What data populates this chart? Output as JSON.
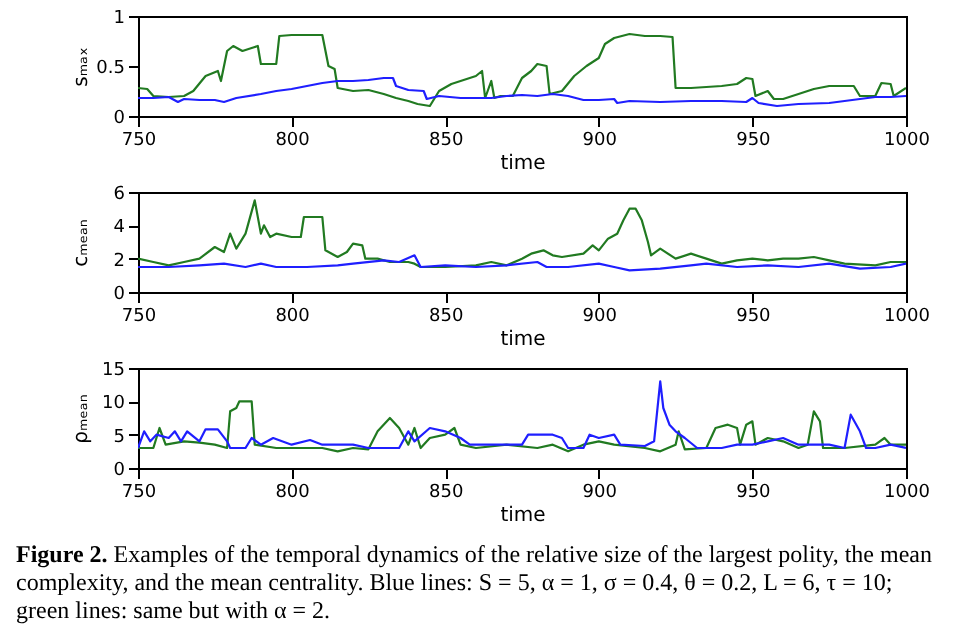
{
  "chart_data": [
    {
      "type": "line",
      "xlabel": "time",
      "ylabel": "sₘₐₓ",
      "xlim": [
        750,
        1000
      ],
      "xticks": [
        750,
        800,
        850,
        900,
        950,
        1000
      ],
      "ylim": [
        0,
        1
      ],
      "yticks": [
        0,
        0.5,
        1
      ],
      "series": [
        {
          "color": "#217a21",
          "x": [
            750,
            753,
            755,
            760,
            765,
            768,
            772,
            776,
            777,
            779,
            781,
            784,
            787,
            789,
            790,
            795,
            796,
            800,
            805,
            810,
            812,
            814,
            815,
            820,
            825,
            830,
            834,
            838,
            841,
            845,
            848,
            852,
            856,
            860,
            862,
            863,
            865,
            866,
            868,
            872,
            875,
            878,
            880,
            883,
            884,
            888,
            892,
            896,
            900,
            902,
            905,
            910,
            915,
            920,
            924,
            925,
            930,
            940,
            945,
            948,
            950,
            951,
            955,
            957,
            960,
            965,
            970,
            975,
            983,
            985,
            990,
            992,
            995,
            996,
            1000
          ],
          "values": [
            0.28,
            0.27,
            0.2,
            0.19,
            0.2,
            0.25,
            0.4,
            0.45,
            0.35,
            0.65,
            0.7,
            0.65,
            0.68,
            0.7,
            0.52,
            0.52,
            0.8,
            0.81,
            0.81,
            0.81,
            0.5,
            0.47,
            0.28,
            0.25,
            0.26,
            0.22,
            0.18,
            0.15,
            0.12,
            0.1,
            0.25,
            0.32,
            0.36,
            0.4,
            0.45,
            0.18,
            0.35,
            0.18,
            0.2,
            0.2,
            0.38,
            0.45,
            0.52,
            0.5,
            0.22,
            0.25,
            0.4,
            0.5,
            0.58,
            0.72,
            0.78,
            0.82,
            0.8,
            0.8,
            0.79,
            0.28,
            0.28,
            0.3,
            0.32,
            0.38,
            0.37,
            0.2,
            0.25,
            0.17,
            0.17,
            0.22,
            0.27,
            0.3,
            0.3,
            0.2,
            0.2,
            0.33,
            0.32,
            0.2,
            0.28
          ]
        },
        {
          "color": "#1f1fff",
          "x": [
            750,
            755,
            760,
            763,
            765,
            770,
            775,
            778,
            782,
            790,
            795,
            800,
            805,
            810,
            815,
            820,
            825,
            830,
            833,
            834,
            838,
            843,
            844,
            848,
            855,
            865,
            870,
            875,
            880,
            885,
            890,
            895,
            900,
            905,
            906,
            910,
            920,
            930,
            940,
            948,
            950,
            952,
            958,
            965,
            975,
            985,
            990,
            995,
            1000
          ],
          "values": [
            0.18,
            0.18,
            0.19,
            0.14,
            0.17,
            0.16,
            0.16,
            0.14,
            0.18,
            0.22,
            0.25,
            0.27,
            0.3,
            0.33,
            0.35,
            0.35,
            0.36,
            0.38,
            0.38,
            0.3,
            0.26,
            0.25,
            0.17,
            0.2,
            0.18,
            0.18,
            0.2,
            0.21,
            0.2,
            0.22,
            0.2,
            0.16,
            0.16,
            0.17,
            0.13,
            0.15,
            0.14,
            0.15,
            0.15,
            0.14,
            0.18,
            0.13,
            0.1,
            0.12,
            0.13,
            0.17,
            0.19,
            0.19,
            0.2
          ]
        }
      ]
    },
    {
      "type": "line",
      "xlabel": "time",
      "ylabel": "cₘₑₐₙ",
      "xlim": [
        750,
        1000
      ],
      "xticks": [
        750,
        800,
        850,
        900,
        950,
        1000
      ],
      "ylim": [
        0,
        6
      ],
      "yticks": [
        0,
        2,
        4,
        6
      ],
      "series": [
        {
          "color": "#217a21",
          "x": [
            750,
            755,
            760,
            765,
            770,
            775,
            778,
            780,
            782,
            785,
            788,
            790,
            791,
            793,
            795,
            800,
            803,
            804,
            810,
            811,
            815,
            818,
            820,
            823,
            824,
            828,
            832,
            838,
            840,
            842,
            850,
            860,
            865,
            870,
            875,
            878,
            882,
            885,
            888,
            895,
            898,
            900,
            903,
            906,
            908,
            910,
            912,
            914,
            916,
            917,
            920,
            925,
            930,
            935,
            940,
            945,
            950,
            955,
            960,
            965,
            970,
            975,
            980,
            990,
            995,
            1000
          ],
          "values": [
            2.0,
            1.8,
            1.6,
            1.8,
            2.0,
            2.7,
            2.4,
            3.5,
            2.6,
            3.5,
            5.5,
            3.5,
            4.0,
            3.3,
            3.5,
            3.3,
            3.3,
            4.5,
            4.5,
            2.5,
            2.1,
            2.4,
            2.9,
            2.8,
            2.0,
            2.0,
            1.8,
            1.8,
            1.7,
            1.5,
            1.5,
            1.6,
            1.8,
            1.6,
            2.0,
            2.3,
            2.5,
            2.2,
            2.1,
            2.3,
            2.8,
            2.5,
            3.2,
            3.5,
            4.3,
            5.0,
            5.0,
            4.3,
            3.0,
            2.2,
            2.6,
            2.0,
            2.3,
            2.0,
            1.7,
            1.9,
            2.0,
            1.9,
            2.0,
            2.0,
            2.1,
            1.9,
            1.7,
            1.6,
            1.8,
            1.8
          ]
        },
        {
          "color": "#1f1fff",
          "x": [
            750,
            760,
            770,
            778,
            785,
            790,
            795,
            805,
            815,
            820,
            830,
            835,
            840,
            842,
            850,
            860,
            870,
            880,
            883,
            890,
            900,
            905,
            910,
            920,
            930,
            935,
            945,
            955,
            965,
            975,
            985,
            995,
            1000
          ],
          "values": [
            1.5,
            1.5,
            1.6,
            1.7,
            1.5,
            1.7,
            1.5,
            1.5,
            1.6,
            1.7,
            1.9,
            1.8,
            2.2,
            1.5,
            1.6,
            1.5,
            1.6,
            1.8,
            1.5,
            1.5,
            1.7,
            1.5,
            1.3,
            1.4,
            1.6,
            1.7,
            1.5,
            1.6,
            1.5,
            1.7,
            1.4,
            1.5,
            1.7
          ]
        }
      ]
    },
    {
      "type": "line",
      "xlabel": "time",
      "ylabel": "ρₘₑₐₙ",
      "xlim": [
        750,
        1000
      ],
      "xticks": [
        750,
        800,
        850,
        900,
        950,
        1000
      ],
      "ylim": [
        0,
        15
      ],
      "yticks": [
        0,
        5,
        10,
        15
      ],
      "series": [
        {
          "color": "#217a21",
          "x": [
            750,
            755,
            757,
            759,
            765,
            770,
            775,
            779,
            780,
            782,
            783,
            787,
            788,
            795,
            805,
            810,
            815,
            820,
            825,
            828,
            832,
            835,
            838,
            840,
            842,
            845,
            850,
            853,
            855,
            860,
            870,
            880,
            885,
            890,
            895,
            900,
            905,
            915,
            920,
            925,
            926,
            928,
            935,
            938,
            942,
            945,
            946,
            948,
            950,
            951,
            955,
            960,
            965,
            968,
            970,
            972,
            973,
            980,
            990,
            993,
            995,
            1000
          ],
          "values": [
            3,
            3,
            6,
            3.5,
            4,
            3.8,
            3.5,
            3,
            8.5,
            9,
            10,
            10,
            3.5,
            3,
            3,
            3,
            2.5,
            3,
            2.8,
            5.5,
            7.5,
            6,
            3.5,
            6,
            3,
            4.5,
            5,
            6,
            3.5,
            3,
            3.5,
            3,
            3.5,
            2.5,
            3.5,
            4,
            3.5,
            3,
            2.5,
            3.5,
            5.5,
            2.8,
            3,
            6,
            6.5,
            6,
            3.5,
            6.5,
            7,
            3.5,
            4.5,
            4,
            3,
            3.5,
            8.5,
            7,
            3,
            3,
            3.5,
            4.5,
            3.5,
            3.5
          ]
        },
        {
          "color": "#1f1fff",
          "x": [
            750,
            752,
            754,
            756,
            760,
            762,
            764,
            766,
            770,
            772,
            776,
            779,
            780,
            785,
            787,
            790,
            794,
            800,
            806,
            810,
            820,
            825,
            830,
            835,
            838,
            840,
            845,
            850,
            855,
            858,
            865,
            875,
            877,
            885,
            888,
            890,
            895,
            897,
            900,
            905,
            907,
            915,
            918,
            920,
            921,
            923,
            925,
            928,
            932,
            940,
            945,
            950,
            955,
            960,
            965,
            975,
            980,
            982,
            985,
            987,
            990,
            995,
            1000
          ],
          "values": [
            3,
            5.5,
            4,
            5,
            4.5,
            5.5,
            4,
            5.5,
            4,
            5.8,
            5.8,
            4,
            3,
            3,
            4.5,
            3.5,
            4.5,
            3.5,
            4.2,
            3.5,
            3.5,
            3,
            3,
            3,
            5.5,
            4,
            6,
            5.5,
            4.5,
            3.5,
            3.5,
            3.5,
            5,
            5,
            4.5,
            3,
            3,
            5,
            4.5,
            5,
            3.5,
            3.3,
            4,
            13,
            9,
            6.5,
            5.5,
            4.5,
            3,
            3,
            3.5,
            3.5,
            4,
            4.5,
            3.5,
            3.5,
            3,
            8,
            5.5,
            3,
            3,
            3.5,
            3
          ]
        }
      ],
      "annotations": [
        "Figure 2.",
        "Examples of the temporal dynamics of the relative size of the largest polity, the mean complexity, and the mean centrality. Blue lines: S = 5, α = 1, σ = 0.4, θ = 0.2, L = 6, τ = 10; green lines: same but with α = 2."
      ]
    }
  ]
}
